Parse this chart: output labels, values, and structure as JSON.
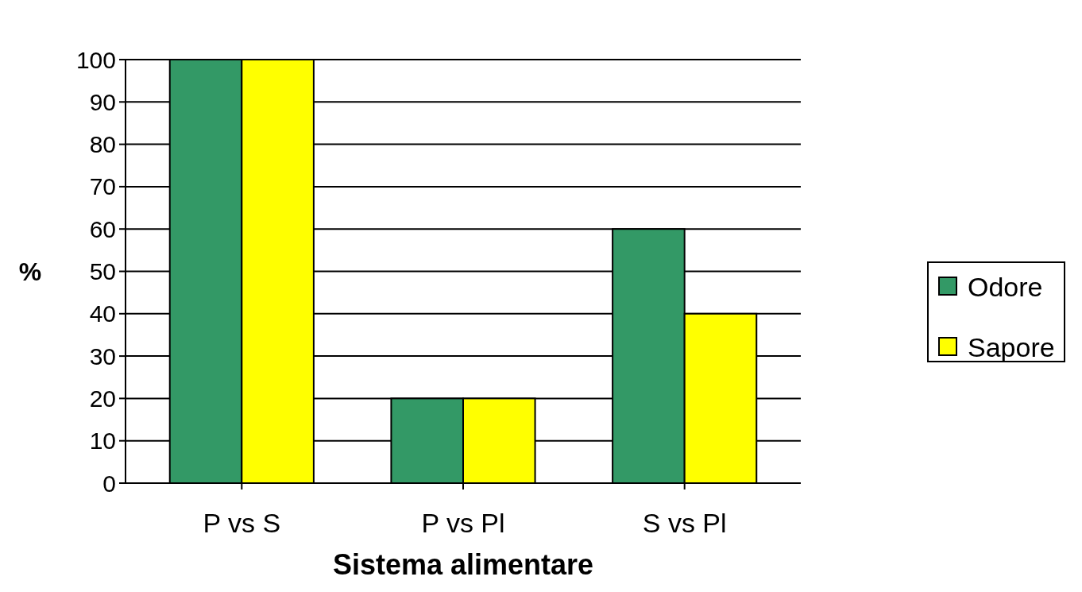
{
  "chart_data": {
    "type": "bar",
    "xlabel": "Sistema alimentare",
    "ylabel": "%",
    "categories": [
      "P vs S",
      "P vs Pl",
      "S vs Pl"
    ],
    "series": [
      {
        "name": "Odore",
        "color": "#339966",
        "values": [
          100,
          20,
          60
        ]
      },
      {
        "name": "Sapore",
        "color": "#ffff00",
        "values": [
          100,
          20,
          40
        ]
      }
    ],
    "ylim": [
      0,
      100
    ],
    "yticks": [
      0,
      10,
      20,
      30,
      40,
      50,
      60,
      70,
      80,
      90,
      100
    ],
    "grid": "y",
    "legend": "right"
  }
}
